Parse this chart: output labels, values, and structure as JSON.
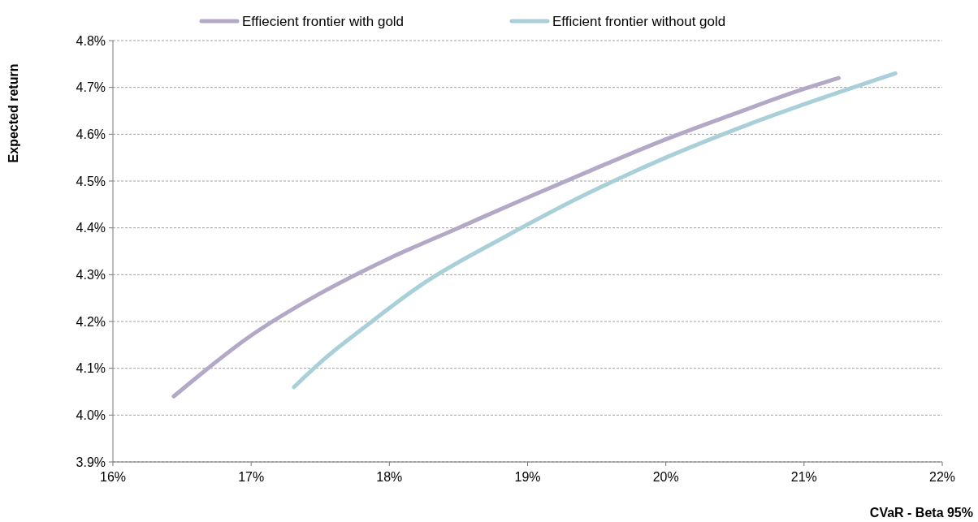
{
  "chart_data": {
    "type": "line",
    "xlabel": "CVaR - Beta 95%",
    "ylabel": "Expected return",
    "xlim": [
      16,
      22
    ],
    "ylim": [
      3.9,
      4.8
    ],
    "xticks": [
      {
        "value": 16,
        "label": "16%"
      },
      {
        "value": 17,
        "label": "17%"
      },
      {
        "value": 18,
        "label": "18%"
      },
      {
        "value": 19,
        "label": "19%"
      },
      {
        "value": 20,
        "label": "20%"
      },
      {
        "value": 21,
        "label": "21%"
      },
      {
        "value": 22,
        "label": "22%"
      }
    ],
    "yticks": [
      {
        "value": 3.9,
        "label": "3.9%"
      },
      {
        "value": 4.0,
        "label": "4.0%"
      },
      {
        "value": 4.1,
        "label": "4.1%"
      },
      {
        "value": 4.2,
        "label": "4.2%"
      },
      {
        "value": 4.3,
        "label": "4.3%"
      },
      {
        "value": 4.4,
        "label": "4.4%"
      },
      {
        "value": 4.5,
        "label": "4.5%"
      },
      {
        "value": 4.6,
        "label": "4.6%"
      },
      {
        "value": 4.7,
        "label": "4.7%"
      },
      {
        "value": 4.8,
        "label": "4.8%"
      }
    ],
    "grid": "y",
    "legend": "top",
    "marker": "none",
    "line_style": "solid",
    "series": [
      {
        "name": "Effiecient frontier with gold",
        "color": "#b3a9c6",
        "x": [
          16.44,
          17.0,
          17.5,
          18.0,
          18.5,
          19.0,
          19.5,
          20.0,
          20.5,
          21.0,
          21.25
        ],
        "values": [
          4.04,
          4.17,
          4.26,
          4.335,
          4.4,
          4.465,
          4.528,
          4.589,
          4.644,
          4.697,
          4.72
        ]
      },
      {
        "name": "Efficient frontier without gold",
        "color": "#a9cfd8",
        "x": [
          17.31,
          17.53,
          17.83,
          18.24,
          18.83,
          19.41,
          20.0,
          20.59,
          21.06,
          21.66
        ],
        "values": [
          4.06,
          4.12,
          4.19,
          4.28,
          4.38,
          4.47,
          4.55,
          4.62,
          4.67,
          4.73
        ]
      }
    ]
  }
}
